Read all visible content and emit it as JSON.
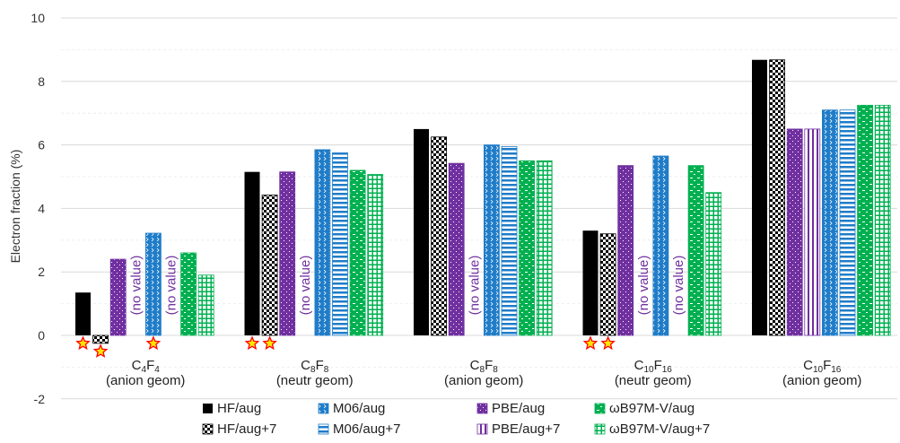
{
  "chart_data": {
    "type": "bar",
    "title": "",
    "xlabel": "",
    "ylabel": "Electron fraction (%)",
    "ylim": [
      -2,
      10
    ],
    "yticks": [
      -2,
      0,
      2,
      4,
      6,
      8,
      10
    ],
    "grid": true,
    "legend_position": "bottom",
    "categories": [
      {
        "mol": [
          [
            "C",
            ""
          ],
          [
            "4",
            "sub"
          ],
          [
            "F",
            ""
          ],
          [
            "4",
            "sub"
          ]
        ],
        "geom": "(anion geom)"
      },
      {
        "mol": [
          [
            "C",
            ""
          ],
          [
            "8",
            "sub"
          ],
          [
            "F",
            ""
          ],
          [
            "8",
            "sub"
          ]
        ],
        "geom": "(neutr geom)"
      },
      {
        "mol": [
          [
            "C",
            ""
          ],
          [
            "8",
            "sub"
          ],
          [
            "F",
            ""
          ],
          [
            "8",
            "sub"
          ]
        ],
        "geom": "(anion geom)"
      },
      {
        "mol": [
          [
            "C",
            ""
          ],
          [
            "10",
            "sub"
          ],
          [
            "F",
            ""
          ],
          [
            "16",
            "sub"
          ]
        ],
        "geom": "(neutr geom)"
      },
      {
        "mol": [
          [
            "C",
            ""
          ],
          [
            "10",
            "sub"
          ],
          [
            "F",
            ""
          ],
          [
            "16",
            "sub"
          ]
        ],
        "geom": "(anion geom)"
      }
    ],
    "no_value_label": "(no value)",
    "series": [
      {
        "name": "HF/aug",
        "color": "#000000",
        "pattern": "solid",
        "values": [
          1.35,
          5.15,
          6.5,
          3.3,
          8.68
        ]
      },
      {
        "name": "HF/aug+7",
        "color": "#000000",
        "pattern": "checker",
        "values": [
          -0.25,
          4.42,
          6.25,
          3.2,
          8.68
        ]
      },
      {
        "name": "PBE/aug",
        "color": "#7030A0",
        "pattern": "dots",
        "values": [
          2.4,
          5.15,
          5.42,
          5.35,
          6.5
        ]
      },
      {
        "name": "PBE/aug+7",
        "color": "#7030A0",
        "pattern": "vertical",
        "values": [
          null,
          null,
          null,
          null,
          6.5
        ]
      },
      {
        "name": "M06/aug",
        "color": "#1F7CC8",
        "pattern": "zigzag",
        "values": [
          3.22,
          5.85,
          6.0,
          5.65,
          7.1
        ]
      },
      {
        "name": "M06/aug+7",
        "color": "#1F7CC8",
        "pattern": "horizontal",
        "values": [
          null,
          5.75,
          5.95,
          null,
          7.1
        ]
      },
      {
        "name": "ωB97M-V/aug",
        "color": "#00B050",
        "pattern": "dashes",
        "values": [
          2.6,
          5.2,
          5.5,
          5.35,
          7.25
        ]
      },
      {
        "name": "ωB97M-V/aug+7",
        "color": "#00B050",
        "pattern": "grid",
        "values": [
          1.9,
          5.07,
          5.5,
          4.5,
          7.25
        ]
      }
    ],
    "stars": [
      [
        0,
        0
      ],
      [
        0,
        1
      ],
      [
        0,
        4
      ],
      [
        1,
        0
      ],
      [
        1,
        1
      ],
      [
        3,
        0
      ],
      [
        3,
        1
      ]
    ],
    "legend_rows": [
      [
        "HF/aug",
        "M06/aug",
        "PBE/aug",
        "ωB97M-V/aug"
      ],
      [
        "HF/aug+7",
        "M06/aug+7",
        "PBE/aug+7",
        "ωB97M-V/aug+7"
      ]
    ]
  }
}
